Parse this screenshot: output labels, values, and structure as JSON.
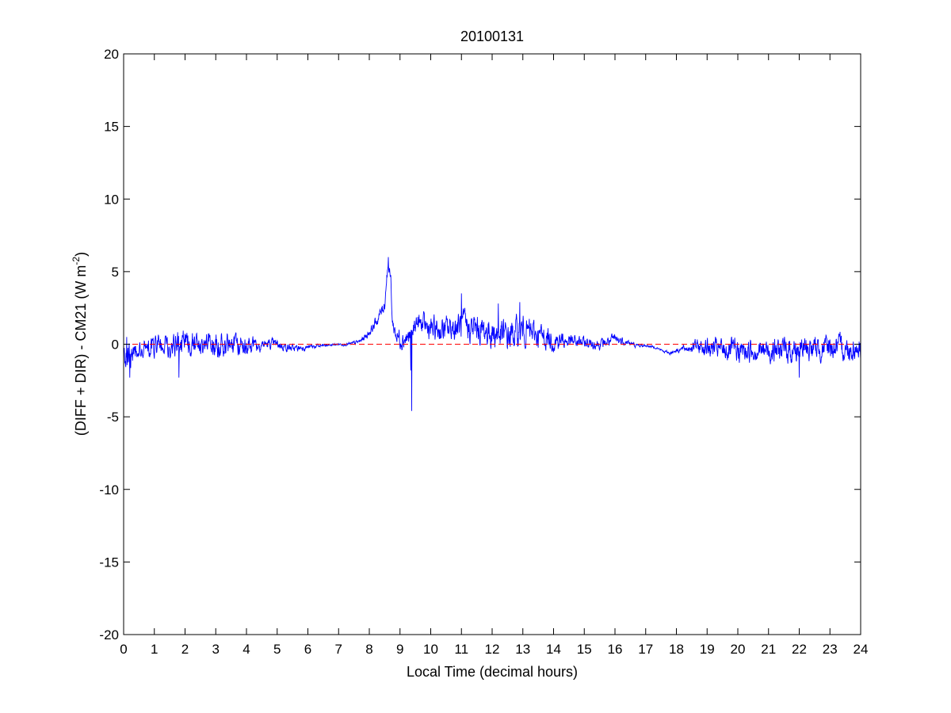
{
  "chart_data": {
    "type": "line",
    "title": "20100131",
    "xlabel": "Local Time (decimal hours)",
    "ylabel_main": "(DIFF + DIR) - CM21 (W m",
    "ylabel_sup": "-2",
    "ylabel_tail": ")",
    "xlim": [
      0,
      24
    ],
    "ylim": [
      -20,
      20
    ],
    "xticks": [
      0,
      1,
      2,
      3,
      4,
      5,
      6,
      7,
      8,
      9,
      10,
      11,
      12,
      13,
      14,
      15,
      16,
      17,
      18,
      19,
      20,
      21,
      22,
      23,
      24
    ],
    "yticks": [
      -20,
      -15,
      -10,
      -5,
      0,
      5,
      10,
      15,
      20
    ],
    "grid": false,
    "series": [
      {
        "color": "#0000ff",
        "style": "solid",
        "envelope": {
          "x": [
            0,
            0.1,
            0.3,
            0.5,
            1,
            1.5,
            2,
            2.5,
            3,
            3.5,
            4,
            4.5,
            5,
            5.5,
            6,
            6.5,
            7,
            7.4,
            7.7,
            8,
            8.3,
            8.5,
            8.6,
            8.7,
            8.75,
            8.9,
            9.2,
            9.4,
            9.5,
            9.8,
            10,
            10.5,
            11,
            11.5,
            12,
            12.5,
            13,
            13.5,
            14,
            14.5,
            15,
            15.5,
            16,
            16.3,
            16.7,
            17,
            17.3,
            17.6,
            17.8,
            18,
            18.3,
            18.6,
            19,
            19.5,
            20,
            20.5,
            21,
            21.5,
            22,
            22.5,
            23,
            23.5,
            24
          ],
          "mean": [
            -0.4,
            -1.0,
            -0.5,
            -0.3,
            -0.1,
            0.0,
            -0.1,
            0.0,
            -0.1,
            0.0,
            -0.1,
            0.0,
            0.0,
            -0.3,
            -0.2,
            -0.1,
            0.0,
            0.0,
            0.2,
            0.8,
            1.8,
            2.8,
            5.5,
            4.5,
            1.5,
            0.5,
            0.4,
            0.6,
            1.5,
            1.3,
            1.0,
            1.0,
            1.3,
            1.0,
            0.8,
            0.5,
            1.0,
            0.6,
            0.3,
            0.2,
            0.1,
            0.0,
            0.3,
            0.2,
            -0.1,
            -0.1,
            -0.2,
            -0.5,
            -0.6,
            -0.4,
            -0.3,
            -0.1,
            -0.2,
            -0.4,
            -0.5,
            -0.4,
            -0.4,
            -0.4,
            -0.3,
            -0.3,
            -0.2,
            -0.3,
            -0.3
          ],
          "amp": [
            1.0,
            1.3,
            1.0,
            0.8,
            0.9,
            1.0,
            1.2,
            1.0,
            1.1,
            0.9,
            0.9,
            0.5,
            0.4,
            0.3,
            0.2,
            0.15,
            0.1,
            0.15,
            0.2,
            0.3,
            0.5,
            0.6,
            0.4,
            0.5,
            0.6,
            0.8,
            0.9,
            0.6,
            0.8,
            0.9,
            1.0,
            1.1,
            1.2,
            1.2,
            1.3,
            1.3,
            1.2,
            1.0,
            0.9,
            0.6,
            0.5,
            0.4,
            0.5,
            0.3,
            0.15,
            0.1,
            0.1,
            0.1,
            0.15,
            0.2,
            0.3,
            0.5,
            0.8,
            0.9,
            1.0,
            0.9,
            1.0,
            1.1,
            1.2,
            1.0,
            1.0,
            1.0,
            1.0
          ]
        },
        "spikes": [
          {
            "x": 9.38,
            "y": -4.6
          },
          {
            "x": 9.35,
            "y": -1.8
          },
          {
            "x": 8.62,
            "y": 6.0
          },
          {
            "x": 8.58,
            "y": 4.6
          },
          {
            "x": 11.0,
            "y": 3.5
          },
          {
            "x": 12.9,
            "y": 2.9
          },
          {
            "x": 12.2,
            "y": 2.8
          },
          {
            "x": 1.8,
            "y": -2.3
          },
          {
            "x": 22.0,
            "y": 1.4
          },
          {
            "x": 22.0,
            "y": -2.3
          },
          {
            "x": 0.2,
            "y": -2.3
          },
          {
            "x": 0.1,
            "y": 0.5
          }
        ],
        "samples": 2400
      },
      {
        "color": "#ff0000",
        "style": "dashed",
        "x": [
          0,
          24
        ],
        "y": [
          0,
          0
        ]
      }
    ]
  }
}
